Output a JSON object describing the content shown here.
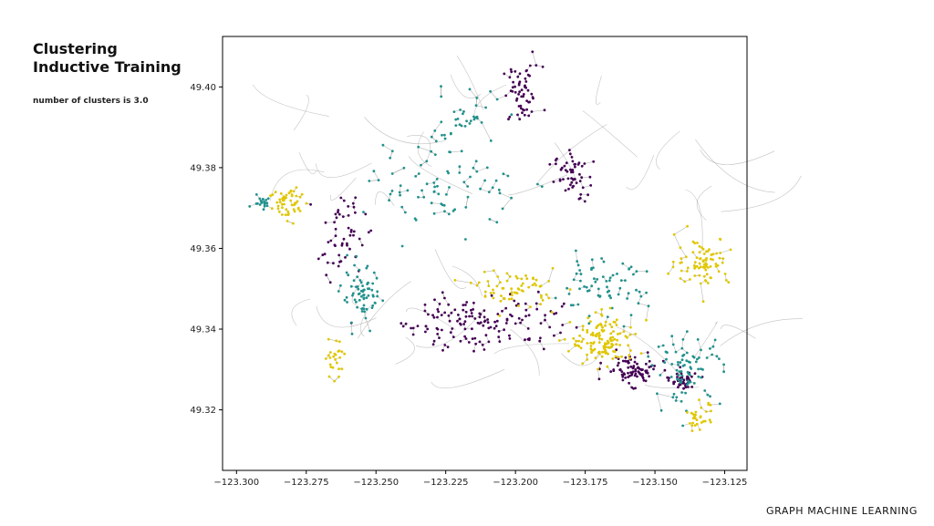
{
  "slide": {
    "title_line1": "Clustering",
    "title_line2": "Inductive Training",
    "subtitle": "number of clusters is 3.0",
    "footer": "GRAPH MACHINE LEARNING"
  },
  "chart_data": {
    "type": "scatter",
    "description_kind": "road-network graph with nodes colored by cluster",
    "xlim": [
      -123.305,
      -123.117
    ],
    "ylim": [
      49.305,
      49.4125
    ],
    "x_ticks": [
      "−123.300",
      "−123.275",
      "−123.250",
      "−123.225",
      "−123.200",
      "−123.175",
      "−123.150",
      "−123.125"
    ],
    "x_tick_values": [
      -123.3,
      -123.275,
      -123.25,
      -123.225,
      -123.2,
      -123.175,
      -123.15,
      -123.125
    ],
    "y_ticks": [
      "49.32",
      "49.34",
      "49.36",
      "49.38",
      "49.40"
    ],
    "y_tick_values": [
      49.32,
      49.34,
      49.36,
      49.38,
      49.4
    ],
    "grid": false,
    "legend": "none",
    "edge_color": "#9a9a9a",
    "series": [
      {
        "color": "#440154",
        "regions": [
          {
            "cx": -123.1975,
            "cy": 49.398,
            "sx": 0.006,
            "sy": 0.006,
            "n": 60
          },
          {
            "cx": -123.18,
            "cy": 49.378,
            "sx": 0.005,
            "sy": 0.005,
            "n": 55
          },
          {
            "cx": -123.212,
            "cy": 49.342,
            "sx": 0.024,
            "sy": 0.006,
            "n": 150
          },
          {
            "cx": -123.262,
            "cy": 49.363,
            "sx": 0.007,
            "sy": 0.008,
            "n": 55
          },
          {
            "cx": -123.158,
            "cy": 49.33,
            "sx": 0.008,
            "sy": 0.003,
            "n": 90
          },
          {
            "cx": -123.14,
            "cy": 49.327,
            "sx": 0.004,
            "sy": 0.002,
            "n": 45
          }
        ]
      },
      {
        "color": "#21918c",
        "regions": [
          {
            "cx": -123.22,
            "cy": 49.392,
            "sx": 0.012,
            "sy": 0.006,
            "n": 40
          },
          {
            "cx": -123.225,
            "cy": 49.375,
            "sx": 0.022,
            "sy": 0.008,
            "n": 80
          },
          {
            "cx": -123.255,
            "cy": 49.348,
            "sx": 0.006,
            "sy": 0.006,
            "n": 70
          },
          {
            "cx": -123.17,
            "cy": 49.35,
            "sx": 0.014,
            "sy": 0.006,
            "n": 70
          },
          {
            "cx": -123.138,
            "cy": 49.33,
            "sx": 0.01,
            "sy": 0.007,
            "n": 85
          },
          {
            "cx": -123.291,
            "cy": 49.372,
            "sx": 0.003,
            "sy": 0.0015,
            "n": 20
          }
        ]
      },
      {
        "color": "#e0c700",
        "regions": [
          {
            "cx": -123.281,
            "cy": 49.371,
            "sx": 0.006,
            "sy": 0.004,
            "n": 55
          },
          {
            "cx": -123.133,
            "cy": 49.357,
            "sx": 0.008,
            "sy": 0.005,
            "n": 85
          },
          {
            "cx": -123.168,
            "cy": 49.337,
            "sx": 0.01,
            "sy": 0.005,
            "n": 130
          },
          {
            "cx": -123.2,
            "cy": 49.35,
            "sx": 0.012,
            "sy": 0.004,
            "n": 70
          },
          {
            "cx": -123.265,
            "cy": 49.333,
            "sx": 0.003,
            "sy": 0.004,
            "n": 25
          },
          {
            "cx": -123.134,
            "cy": 49.318,
            "sx": 0.004,
            "sy": 0.003,
            "n": 30
          }
        ]
      }
    ]
  }
}
